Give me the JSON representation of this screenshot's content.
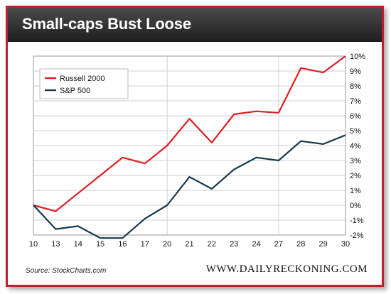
{
  "title": "Small-caps Bust Loose",
  "source": "Source: StockCharts.com",
  "brand": "WWW.DAILYRECKONING.COM",
  "colors": {
    "russell": "#e01b24",
    "sp": "#17394f",
    "frame": "#bf1e2e",
    "grid": "#cfcfcf"
  },
  "chart_data": {
    "type": "line",
    "categories": [
      "10",
      "13",
      "14",
      "15",
      "16",
      "17",
      "20",
      "21",
      "22",
      "23",
      "24",
      "27",
      "28",
      "29",
      "30"
    ],
    "ylim": [
      -2,
      10
    ],
    "yticks": [
      "10%",
      "9%",
      "8%",
      "7%",
      "6%",
      "5%",
      "4%",
      "3%",
      "2%",
      "1%",
      "0%",
      "-1%",
      "-2%"
    ],
    "grid": true,
    "legend": "top-left",
    "series": [
      {
        "name": "Russell 2000",
        "color": "#e01b24",
        "values": [
          0,
          -0.4,
          0.8,
          2.0,
          3.2,
          2.8,
          4.0,
          5.8,
          4.2,
          6.1,
          6.3,
          6.2,
          9.2,
          8.9,
          10.0
        ]
      },
      {
        "name": "S&P 500",
        "color": "#17394f",
        "values": [
          0,
          -1.6,
          -1.4,
          -2.2,
          -2.2,
          -0.9,
          0,
          1.9,
          1.1,
          2.4,
          3.2,
          3.0,
          4.3,
          4.1,
          4.7
        ]
      }
    ]
  }
}
